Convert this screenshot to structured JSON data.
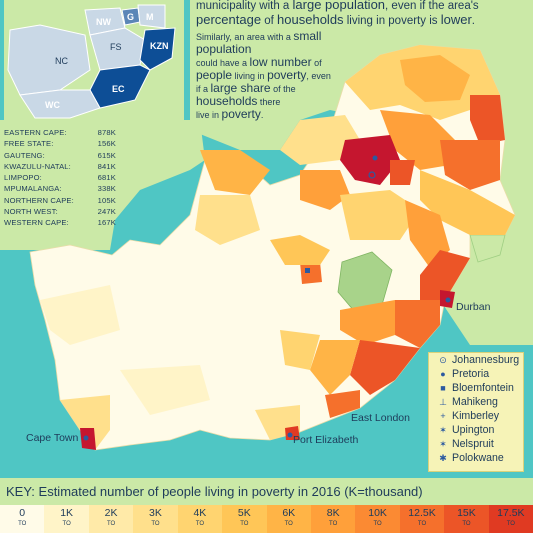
{
  "intro": {
    "line1a": "municipality with a ",
    "line1b": "large population",
    "line1c": ", even if the area's",
    "line2a": "percentage",
    "line2b": " of ",
    "line2c": "households",
    "line2d": " living in poverty is ",
    "line2e": "lower",
    "line2f": ".",
    "p2_1": "Similarly, an area with a ",
    "p2_2": "small population",
    "p2_3": "could have a ",
    "p2_4": "low number",
    "p2_5": " of",
    "p2_6": "people",
    "p2_7": " living in ",
    "p2_8": "poverty",
    "p2_9": ", even",
    "p2_10": "if a ",
    "p2_11": "large share",
    "p2_12": " of the",
    "p2_13": "households",
    "p2_14": " there",
    "p2_15": "live in ",
    "p2_16": "poverty",
    "p2_17": "."
  },
  "provinces": [
    {
      "name": "EASTERN CAPE:",
      "value": "878K"
    },
    {
      "name": "FREE STATE:",
      "value": "156K"
    },
    {
      "name": "GAUTENG:",
      "value": "615K"
    },
    {
      "name": "KWAZULU-NATAL:",
      "value": "841K"
    },
    {
      "name": "LIMPOPO:",
      "value": "681K"
    },
    {
      "name": "MPUMALANGA:",
      "value": "338K"
    },
    {
      "name": "NORTHERN CAPE:",
      "value": "105K"
    },
    {
      "name": "NORTH WEST:",
      "value": "247K"
    },
    {
      "name": "WESTERN CAPE:",
      "value": "167K"
    }
  ],
  "inset": {
    "labels": {
      "nw": "NW",
      "g": "G",
      "m": "M",
      "nc": "NC",
      "fs": "FS",
      "kzn": "KZN",
      "ec": "EC",
      "wc": "WC"
    }
  },
  "cities": [
    {
      "name": "Johannesburg",
      "symbol": "⊙"
    },
    {
      "name": "Pretoria",
      "symbol": "●"
    },
    {
      "name": "Bloemfontein",
      "symbol": "■"
    },
    {
      "name": "Mahikeng",
      "symbol": "⊥"
    },
    {
      "name": "Kimberley",
      "symbol": "+"
    },
    {
      "name": "Upington",
      "symbol": "✶"
    },
    {
      "name": "Nelspruit",
      "symbol": "✶"
    },
    {
      "name": "Polokwane",
      "symbol": "✱"
    }
  ],
  "map_labels": {
    "durban": "Durban",
    "east_london": "East London",
    "cape_town": "Cape Town",
    "port_elizabeth": "Port Elizabeth"
  },
  "key": {
    "title": "KEY: Estimated number of people living in poverty in 2016 (K=thousand)",
    "to_word": "TO",
    "bins": [
      {
        "label": "0",
        "color": "#fffbe8"
      },
      {
        "label": "1K",
        "color": "#fff4c8"
      },
      {
        "label": "2K",
        "color": "#ffeaa8"
      },
      {
        "label": "3K",
        "color": "#ffe08c"
      },
      {
        "label": "4K",
        "color": "#ffd470"
      },
      {
        "label": "5K",
        "color": "#ffc657"
      },
      {
        "label": "6K",
        "color": "#ffb446"
      },
      {
        "label": "8K",
        "color": "#ffa03a"
      },
      {
        "label": "10K",
        "color": "#fb8a33"
      },
      {
        "label": "12.5K",
        "color": "#f5702c"
      },
      {
        "label": "15K",
        "color": "#ec5527"
      },
      {
        "label": "17.5K",
        "color": "#e03a22"
      }
    ]
  },
  "colors": {
    "sea": "#4fc6c4",
    "land_outside": "#cbe9a7",
    "lesotho": "#a8d38a",
    "highlight_red": "#c5162f",
    "inset_blue": "#0d4e96"
  }
}
